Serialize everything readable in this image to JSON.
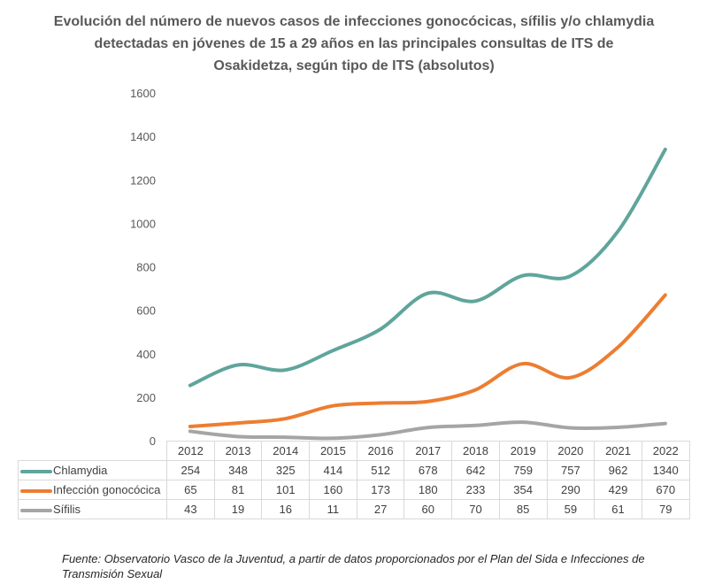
{
  "chart_data": {
    "type": "line",
    "title": "Evolución del número de nuevos casos de infecciones gonocócicas, sífilis y/o chlamydia detectadas en jóvenes de 15 a 29 años en las principales consultas de ITS de Osakidetza, según tipo de ITS (absolutos)",
    "categories": [
      "2012",
      "2013",
      "2014",
      "2015",
      "2016",
      "2017",
      "2018",
      "2019",
      "2020",
      "2021",
      "2022"
    ],
    "series": [
      {
        "name": "Chlamydia",
        "color": "#5fa59c",
        "values": [
          254,
          348,
          325,
          414,
          512,
          678,
          642,
          759,
          757,
          962,
          1340
        ]
      },
      {
        "name": "Infección gonocócica",
        "color": "#ed7d31",
        "values": [
          65,
          81,
          101,
          160,
          173,
          180,
          233,
          354,
          290,
          429,
          670
        ]
      },
      {
        "name": "Sífilis",
        "color": "#a5a5a5",
        "values": [
          43,
          19,
          16,
          11,
          27,
          60,
          70,
          85,
          59,
          61,
          79
        ]
      }
    ],
    "yticks": [
      "0",
      "200",
      "400",
      "600",
      "800",
      "1000",
      "1200",
      "1400",
      "1600"
    ],
    "ylim": [
      0,
      1600
    ],
    "grid": false,
    "smooth": true,
    "legend": "data-table"
  },
  "footnote": "Fuente: Observatorio Vasco de la Juventud, a partir de datos proporcionados por el Plan del Sida e Infecciones de Transmisión Sexual"
}
